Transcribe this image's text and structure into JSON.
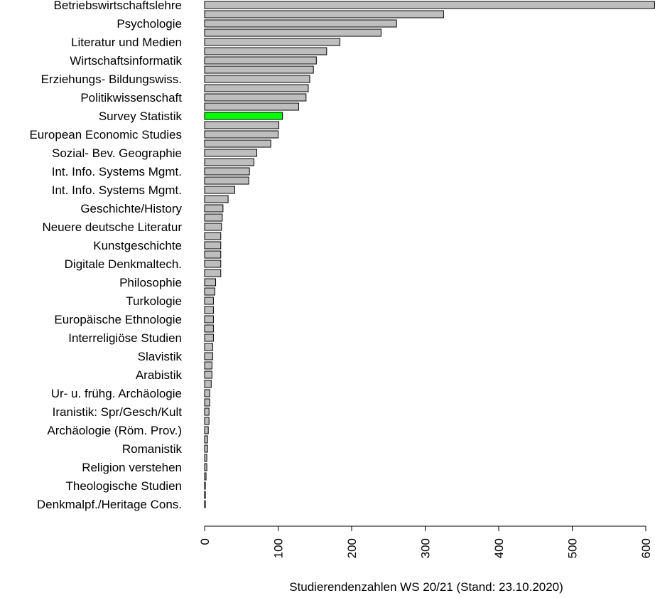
{
  "chart_data": {
    "type": "bar",
    "orientation": "horizontal",
    "xlabel": "Studierendenzahlen WS 20/21 (Stand: 23.10.2020)",
    "xlim": [
      0,
      600
    ],
    "x_ticks": [
      "0",
      "100",
      "200",
      "300",
      "400",
      "500",
      "600"
    ],
    "grid": false,
    "legend": "none",
    "colors": {
      "default_bar": "#bebebe",
      "highlight_bar": "#00ff00",
      "bar_border": "#000000"
    },
    "highlight_index": 12,
    "bars": [
      {
        "label": "Betriebswirtschaftslehre",
        "value": 612
      },
      {
        "label": "",
        "value": 325
      },
      {
        "label": "Psychologie",
        "value": 261
      },
      {
        "label": "",
        "value": 240
      },
      {
        "label": "Literatur und Medien",
        "value": 184
      },
      {
        "label": "",
        "value": 166
      },
      {
        "label": "Wirtschaftsinformatik",
        "value": 152
      },
      {
        "label": "",
        "value": 148
      },
      {
        "label": "Erziehungs- Bildungswiss.",
        "value": 143
      },
      {
        "label": "",
        "value": 141
      },
      {
        "label": "Politikwissenschaft",
        "value": 138
      },
      {
        "label": "",
        "value": 128
      },
      {
        "label": "Survey Statistik",
        "value": 106
      },
      {
        "label": "",
        "value": 101
      },
      {
        "label": "European Economic Studies",
        "value": 100
      },
      {
        "label": "",
        "value": 90
      },
      {
        "label": "Sozial- Bev. Geographie",
        "value": 71
      },
      {
        "label": "",
        "value": 67
      },
      {
        "label": "Int. Info. Systems Mgmt.",
        "value": 61
      },
      {
        "label": "",
        "value": 60
      },
      {
        "label": "Int. Info. Systems Mgmt.",
        "value": 41
      },
      {
        "label": "",
        "value": 32
      },
      {
        "label": "Geschichte/History",
        "value": 25
      },
      {
        "label": "",
        "value": 24
      },
      {
        "label": "Neuere deutsche Literatur",
        "value": 23
      },
      {
        "label": "",
        "value": 22
      },
      {
        "label": "Kunstgeschichte",
        "value": 22
      },
      {
        "label": "",
        "value": 22
      },
      {
        "label": "Digitale Denkmaltech.",
        "value": 22
      },
      {
        "label": "",
        "value": 22
      },
      {
        "label": "Philosophie",
        "value": 15
      },
      {
        "label": "",
        "value": 14
      },
      {
        "label": "Turkologie",
        "value": 12
      },
      {
        "label": "",
        "value": 12
      },
      {
        "label": "Europäische Ethnologie",
        "value": 12
      },
      {
        "label": "",
        "value": 12
      },
      {
        "label": "Interreligiöse Studien",
        "value": 12
      },
      {
        "label": "",
        "value": 11
      },
      {
        "label": "Slavistik",
        "value": 11
      },
      {
        "label": "",
        "value": 10
      },
      {
        "label": "Arabistik",
        "value": 10
      },
      {
        "label": "",
        "value": 9
      },
      {
        "label": "Ur- u. frühg. Archäologie",
        "value": 7
      },
      {
        "label": "",
        "value": 7
      },
      {
        "label": "Iranistik: Spr/Gesch/Kult",
        "value": 6
      },
      {
        "label": "",
        "value": 6
      },
      {
        "label": "Archäologie (Röm. Prov.)",
        "value": 5
      },
      {
        "label": "",
        "value": 4
      },
      {
        "label": "Romanistik",
        "value": 4
      },
      {
        "label": "",
        "value": 3
      },
      {
        "label": "Religion verstehen",
        "value": 3
      },
      {
        "label": "",
        "value": 2
      },
      {
        "label": "Theologische Studien",
        "value": 1
      },
      {
        "label": "",
        "value": 1
      },
      {
        "label": "Denkmalpf./Heritage Cons.",
        "value": 1
      }
    ]
  }
}
